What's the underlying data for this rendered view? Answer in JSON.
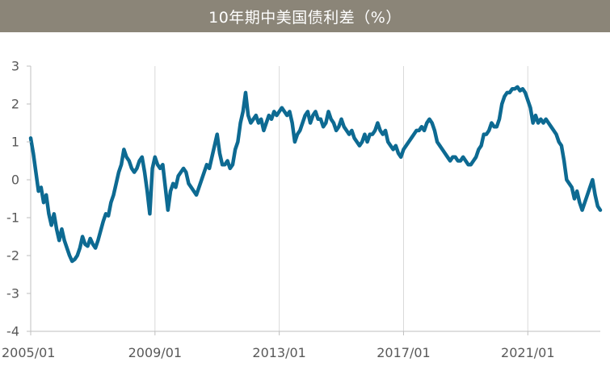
{
  "title": "10年期中美国债利差（%）",
  "colors": {
    "title_bg": "#8b8578",
    "title_text": "#ffffff",
    "series": "#0d6a92",
    "grid": "#d9d9d9",
    "axis": "#bfbfbf",
    "tick_text": "#595959"
  },
  "chart_data": {
    "type": "line",
    "title": "10年期中美国债利差（%）",
    "xlabel": "",
    "ylabel": "",
    "ylim": [
      -4,
      3
    ],
    "yticks": [
      3,
      2,
      1,
      0,
      -1,
      -2,
      -3,
      -4
    ],
    "ytick_labels": [
      "3",
      "2",
      "1",
      "0",
      "-1",
      "-2",
      "-3",
      "-4"
    ],
    "xlim": [
      "2005-01",
      "2023-05"
    ],
    "xticks": [
      "2005/01",
      "2009/01",
      "2013/01",
      "2017/01",
      "2021/01"
    ],
    "grid": {
      "horizontal": false,
      "vertical": true
    },
    "legend": "none",
    "series": [
      {
        "values": [
          [
            "2005-01",
            1.1
          ],
          [
            "2005-02",
            0.7
          ],
          [
            "2005-03",
            0.2
          ],
          [
            "2005-04",
            -0.3
          ],
          [
            "2005-05",
            -0.2
          ],
          [
            "2005-06",
            -0.6
          ],
          [
            "2005-07",
            -0.4
          ],
          [
            "2005-08",
            -0.9
          ],
          [
            "2005-09",
            -1.2
          ],
          [
            "2005-10",
            -0.9
          ],
          [
            "2005-11",
            -1.3
          ],
          [
            "2005-12",
            -1.6
          ],
          [
            "2006-01",
            -1.3
          ],
          [
            "2006-02",
            -1.6
          ],
          [
            "2006-03",
            -1.8
          ],
          [
            "2006-04",
            -2.0
          ],
          [
            "2006-05",
            -2.15
          ],
          [
            "2006-06",
            -2.1
          ],
          [
            "2006-07",
            -2.0
          ],
          [
            "2006-08",
            -1.8
          ],
          [
            "2006-09",
            -1.5
          ],
          [
            "2006-10",
            -1.7
          ],
          [
            "2006-11",
            -1.75
          ],
          [
            "2006-12",
            -1.55
          ],
          [
            "2007-01",
            -1.7
          ],
          [
            "2007-02",
            -1.8
          ],
          [
            "2007-03",
            -1.6
          ],
          [
            "2007-04",
            -1.35
          ],
          [
            "2007-05",
            -1.1
          ],
          [
            "2007-06",
            -0.9
          ],
          [
            "2007-07",
            -0.95
          ],
          [
            "2007-08",
            -0.6
          ],
          [
            "2007-09",
            -0.4
          ],
          [
            "2007-10",
            -0.1
          ],
          [
            "2007-11",
            0.2
          ],
          [
            "2007-12",
            0.4
          ],
          [
            "2008-01",
            0.8
          ],
          [
            "2008-02",
            0.6
          ],
          [
            "2008-03",
            0.5
          ],
          [
            "2008-04",
            0.3
          ],
          [
            "2008-05",
            0.2
          ],
          [
            "2008-06",
            0.3
          ],
          [
            "2008-07",
            0.5
          ],
          [
            "2008-08",
            0.6
          ],
          [
            "2008-09",
            0.2
          ],
          [
            "2008-10",
            -0.3
          ],
          [
            "2008-11",
            -0.9
          ],
          [
            "2008-12",
            0.3
          ],
          [
            "2009-01",
            0.6
          ],
          [
            "2009-02",
            0.4
          ],
          [
            "2009-03",
            0.3
          ],
          [
            "2009-04",
            0.4
          ],
          [
            "2009-05",
            -0.2
          ],
          [
            "2009-06",
            -0.8
          ],
          [
            "2009-07",
            -0.3
          ],
          [
            "2009-08",
            -0.1
          ],
          [
            "2009-09",
            -0.2
          ],
          [
            "2009-10",
            0.1
          ],
          [
            "2009-11",
            0.2
          ],
          [
            "2009-12",
            0.3
          ],
          [
            "2010-01",
            0.2
          ],
          [
            "2010-02",
            -0.1
          ],
          [
            "2010-03",
            -0.2
          ],
          [
            "2010-04",
            -0.3
          ],
          [
            "2010-05",
            -0.4
          ],
          [
            "2010-06",
            -0.2
          ],
          [
            "2010-07",
            0.0
          ],
          [
            "2010-08",
            0.2
          ],
          [
            "2010-09",
            0.4
          ],
          [
            "2010-10",
            0.3
          ],
          [
            "2010-11",
            0.6
          ],
          [
            "2010-12",
            0.9
          ],
          [
            "2011-01",
            1.2
          ],
          [
            "2011-02",
            0.7
          ],
          [
            "2011-03",
            0.4
          ],
          [
            "2011-04",
            0.4
          ],
          [
            "2011-05",
            0.5
          ],
          [
            "2011-06",
            0.3
          ],
          [
            "2011-07",
            0.4
          ],
          [
            "2011-08",
            0.8
          ],
          [
            "2011-09",
            1.0
          ],
          [
            "2011-10",
            1.5
          ],
          [
            "2011-11",
            1.8
          ],
          [
            "2011-12",
            2.3
          ],
          [
            "2012-01",
            1.7
          ],
          [
            "2012-02",
            1.5
          ],
          [
            "2012-03",
            1.6
          ],
          [
            "2012-04",
            1.7
          ],
          [
            "2012-05",
            1.5
          ],
          [
            "2012-06",
            1.6
          ],
          [
            "2012-07",
            1.3
          ],
          [
            "2012-08",
            1.5
          ],
          [
            "2012-09",
            1.7
          ],
          [
            "2012-10",
            1.6
          ],
          [
            "2012-11",
            1.8
          ],
          [
            "2012-12",
            1.7
          ],
          [
            "2013-01",
            1.8
          ],
          [
            "2013-02",
            1.9
          ],
          [
            "2013-03",
            1.8
          ],
          [
            "2013-04",
            1.7
          ],
          [
            "2013-05",
            1.8
          ],
          [
            "2013-06",
            1.5
          ],
          [
            "2013-07",
            1.0
          ],
          [
            "2013-08",
            1.2
          ],
          [
            "2013-09",
            1.3
          ],
          [
            "2013-10",
            1.5
          ],
          [
            "2013-11",
            1.7
          ],
          [
            "2013-12",
            1.8
          ],
          [
            "2014-01",
            1.5
          ],
          [
            "2014-02",
            1.7
          ],
          [
            "2014-03",
            1.8
          ],
          [
            "2014-04",
            1.6
          ],
          [
            "2014-05",
            1.6
          ],
          [
            "2014-06",
            1.4
          ],
          [
            "2014-07",
            1.5
          ],
          [
            "2014-08",
            1.8
          ],
          [
            "2014-09",
            1.6
          ],
          [
            "2014-10",
            1.5
          ],
          [
            "2014-11",
            1.3
          ],
          [
            "2014-12",
            1.4
          ],
          [
            "2015-01",
            1.6
          ],
          [
            "2015-02",
            1.4
          ],
          [
            "2015-03",
            1.3
          ],
          [
            "2015-04",
            1.2
          ],
          [
            "2015-05",
            1.3
          ],
          [
            "2015-06",
            1.1
          ],
          [
            "2015-07",
            1.0
          ],
          [
            "2015-08",
            0.9
          ],
          [
            "2015-09",
            1.0
          ],
          [
            "2015-10",
            1.2
          ],
          [
            "2015-11",
            1.0
          ],
          [
            "2015-12",
            1.2
          ],
          [
            "2016-01",
            1.2
          ],
          [
            "2016-02",
            1.3
          ],
          [
            "2016-03",
            1.5
          ],
          [
            "2016-04",
            1.3
          ],
          [
            "2016-05",
            1.2
          ],
          [
            "2016-06",
            1.3
          ],
          [
            "2016-07",
            1.0
          ],
          [
            "2016-08",
            0.9
          ],
          [
            "2016-09",
            0.8
          ],
          [
            "2016-10",
            0.9
          ],
          [
            "2016-11",
            0.7
          ],
          [
            "2016-12",
            0.6
          ],
          [
            "2017-01",
            0.8
          ],
          [
            "2017-02",
            0.9
          ],
          [
            "2017-03",
            1.0
          ],
          [
            "2017-04",
            1.1
          ],
          [
            "2017-05",
            1.2
          ],
          [
            "2017-06",
            1.3
          ],
          [
            "2017-07",
            1.3
          ],
          [
            "2017-08",
            1.4
          ],
          [
            "2017-09",
            1.3
          ],
          [
            "2017-10",
            1.5
          ],
          [
            "2017-11",
            1.6
          ],
          [
            "2017-12",
            1.5
          ],
          [
            "2018-01",
            1.3
          ],
          [
            "2018-02",
            1.0
          ],
          [
            "2018-03",
            0.9
          ],
          [
            "2018-04",
            0.8
          ],
          [
            "2018-05",
            0.7
          ],
          [
            "2018-06",
            0.6
          ],
          [
            "2018-07",
            0.5
          ],
          [
            "2018-08",
            0.6
          ],
          [
            "2018-09",
            0.6
          ],
          [
            "2018-10",
            0.5
          ],
          [
            "2018-11",
            0.5
          ],
          [
            "2018-12",
            0.6
          ],
          [
            "2019-01",
            0.5
          ],
          [
            "2019-02",
            0.4
          ],
          [
            "2019-03",
            0.4
          ],
          [
            "2019-04",
            0.5
          ],
          [
            "2019-05",
            0.6
          ],
          [
            "2019-06",
            0.8
          ],
          [
            "2019-07",
            0.9
          ],
          [
            "2019-08",
            1.2
          ],
          [
            "2019-09",
            1.2
          ],
          [
            "2019-10",
            1.3
          ],
          [
            "2019-11",
            1.5
          ],
          [
            "2019-12",
            1.4
          ],
          [
            "2020-01",
            1.4
          ],
          [
            "2020-02",
            1.6
          ],
          [
            "2020-03",
            2.0
          ],
          [
            "2020-04",
            2.2
          ],
          [
            "2020-05",
            2.3
          ],
          [
            "2020-06",
            2.3
          ],
          [
            "2020-07",
            2.4
          ],
          [
            "2020-08",
            2.4
          ],
          [
            "2020-09",
            2.45
          ],
          [
            "2020-10",
            2.35
          ],
          [
            "2020-11",
            2.4
          ],
          [
            "2020-12",
            2.3
          ],
          [
            "2021-01",
            2.1
          ],
          [
            "2021-02",
            1.9
          ],
          [
            "2021-03",
            1.5
          ],
          [
            "2021-04",
            1.7
          ],
          [
            "2021-05",
            1.5
          ],
          [
            "2021-06",
            1.6
          ],
          [
            "2021-07",
            1.5
          ],
          [
            "2021-08",
            1.6
          ],
          [
            "2021-09",
            1.5
          ],
          [
            "2021-10",
            1.4
          ],
          [
            "2021-11",
            1.3
          ],
          [
            "2021-12",
            1.2
          ],
          [
            "2022-01",
            1.0
          ],
          [
            "2022-02",
            0.9
          ],
          [
            "2022-03",
            0.5
          ],
          [
            "2022-04",
            0.0
          ],
          [
            "2022-05",
            -0.1
          ],
          [
            "2022-06",
            -0.2
          ],
          [
            "2022-07",
            -0.5
          ],
          [
            "2022-08",
            -0.3
          ],
          [
            "2022-09",
            -0.6
          ],
          [
            "2022-10",
            -0.8
          ],
          [
            "2022-11",
            -0.6
          ],
          [
            "2022-12",
            -0.4
          ],
          [
            "2023-01",
            -0.2
          ],
          [
            "2023-02",
            0.0
          ],
          [
            "2023-03",
            -0.4
          ],
          [
            "2023-04",
            -0.7
          ],
          [
            "2023-05",
            -0.8
          ]
        ]
      }
    ]
  }
}
